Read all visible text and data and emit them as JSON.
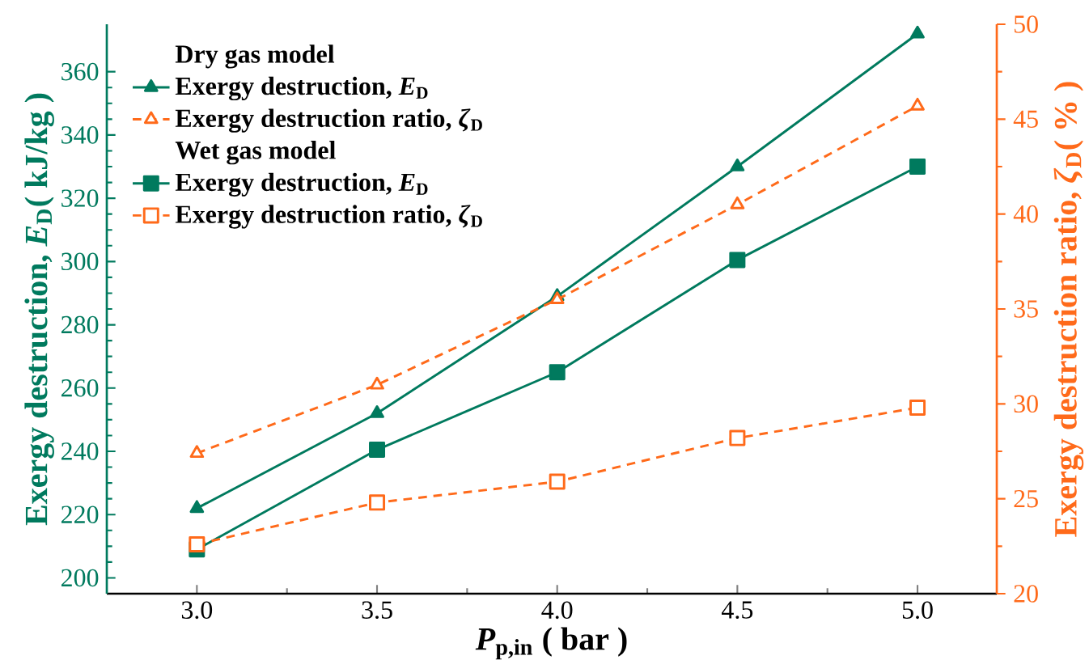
{
  "chart_data": {
    "type": "line",
    "xlabel": "*P*$_{p,in}$ ( bar )",
    "ylabel": "Exergy destruction, *E*$_{D}$( kJ/kg )",
    "y2label": "Exergy destruction ratio, *ζ*$_{D}$( % )",
    "annotations": [
      "Dry gas model",
      "Wet gas model"
    ],
    "x": [
      3.0,
      3.5,
      4.0,
      4.5,
      5.0
    ],
    "series": [
      {
        "name": "Exergy destruction, *E*$_{D}$",
        "color": "#007a5e",
        "values": [
          222,
          252,
          289,
          330,
          372
        ],
        "marker": "triangle",
        "line_style": "solid"
      },
      {
        "name": "Exergy destruction ratio, *ζ*$_{D}$",
        "color": "#ff6a1a",
        "values": [
          27.4,
          31.0,
          35.5,
          40.5,
          45.7
        ],
        "marker": "triangle",
        "line_style": "dashed",
        "axis": "y2"
      },
      {
        "name": "Exergy destruction, *E*$_{D}$",
        "color": "#007a5e",
        "values": [
          209,
          240.5,
          265,
          300.5,
          330
        ],
        "marker": "square",
        "line_style": "solid"
      },
      {
        "name": "Exergy destruction ratio, *ζ*$_{D}$",
        "color": "#ff6a1a",
        "values": [
          22.6,
          24.8,
          25.9,
          28.2,
          29.8
        ],
        "marker": "square",
        "line_style": "dashed",
        "axis": "y2"
      }
    ],
    "xlim": [
      2.75,
      5.22
    ],
    "xticks": [
      {
        "value": 3.0,
        "label": "3.0"
      },
      {
        "value": 3.5,
        "label": "3.5"
      },
      {
        "value": 4.0,
        "label": "4.0"
      },
      {
        "value": 4.5,
        "label": "4.5"
      },
      {
        "value": 5.0,
        "label": "5.0"
      }
    ],
    "ylim": [
      195,
      375
    ],
    "yticks": [
      200,
      220,
      240,
      260,
      280,
      300,
      320,
      340,
      360
    ],
    "y2lim": [
      20,
      50
    ],
    "y2ticks": [
      20,
      25,
      30,
      35,
      40,
      45,
      50
    ],
    "legend": "top left",
    "grid": false
  }
}
